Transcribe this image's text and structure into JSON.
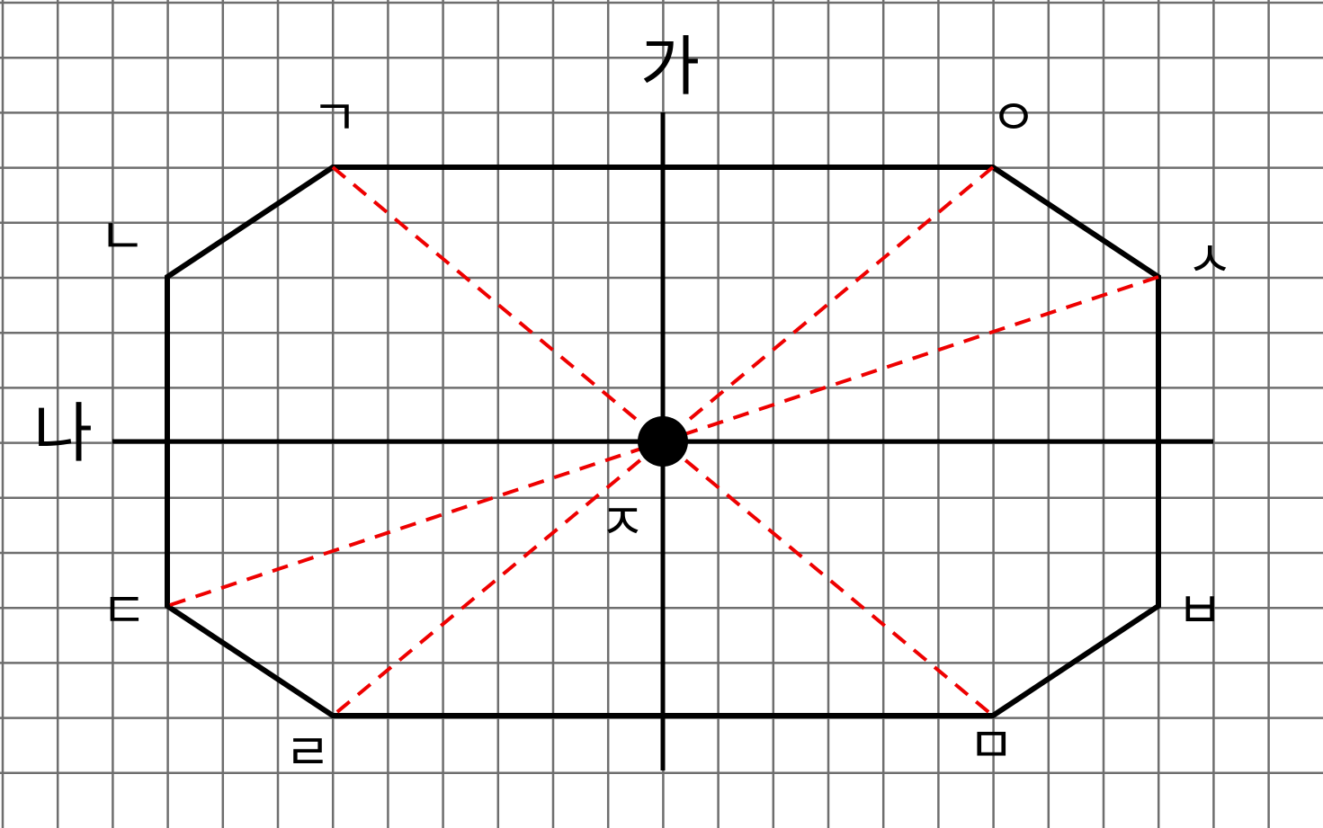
{
  "axes": {
    "vertical": "가",
    "horizontal": "나"
  },
  "points": {
    "giyeok": "ㄱ",
    "nieun": "ㄴ",
    "digeut": "ㄷ",
    "rieul": "ㄹ",
    "mieum": "ㅁ",
    "bieup": "ㅂ",
    "siot": "ㅅ",
    "ieung": "ㅇ",
    "jieut": "ㅈ"
  }
}
